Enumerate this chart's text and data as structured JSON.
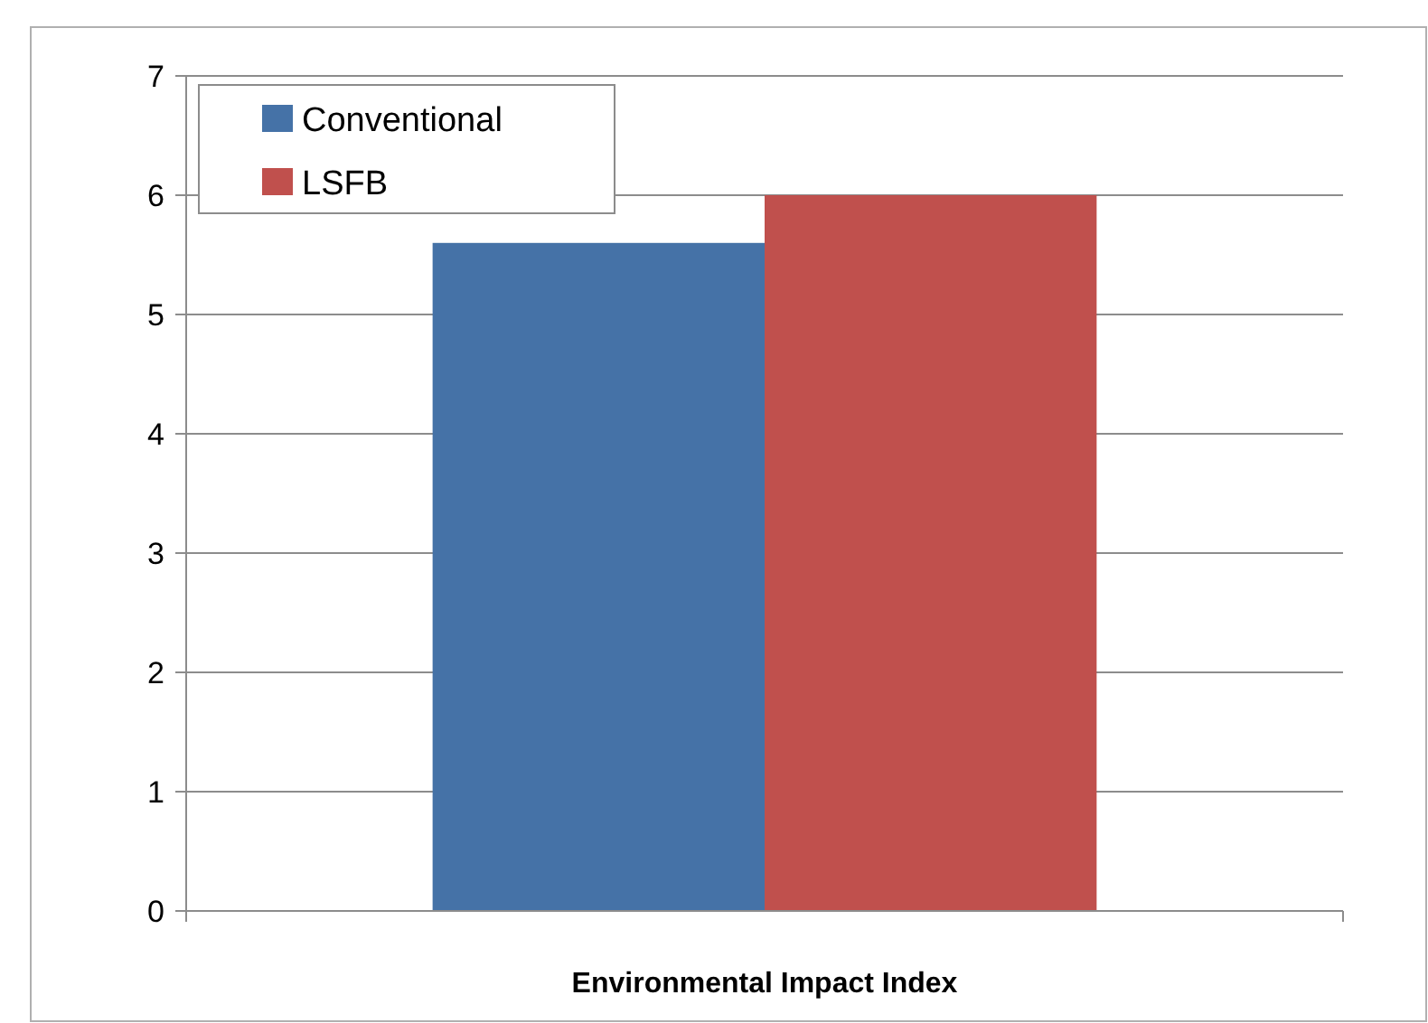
{
  "chart_data": {
    "type": "bar",
    "xlabel": "Environmental Impact Index",
    "categories": [
      null
    ],
    "series": [
      {
        "name": "Conventional",
        "color": "#4572a7",
        "values": [
          5.6
        ]
      },
      {
        "name": "LSFB",
        "color": "#c0504d",
        "values": [
          6.0
        ]
      }
    ],
    "ylim": [
      0,
      7
    ],
    "yticks": [
      0,
      1,
      2,
      3,
      4,
      5,
      6,
      7
    ],
    "grid": "y",
    "legend": "top left"
  }
}
